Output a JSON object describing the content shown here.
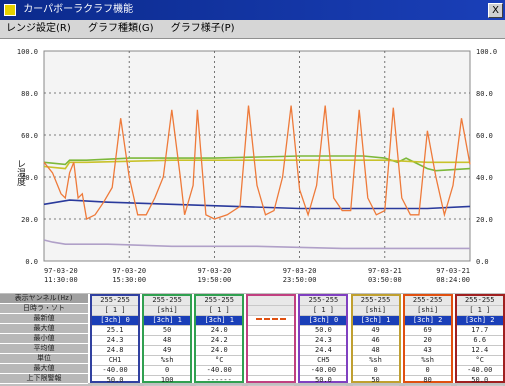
{
  "window": {
    "title": "カーパボーラクラフ機能",
    "close_glyph": "X"
  },
  "menu": {
    "items": [
      "レンジ設定(R)",
      "グラフ種類(G)",
      "グラフ様子(P)"
    ]
  },
  "chart_data": {
    "type": "line",
    "y_left_label": "レ温度",
    "y_left_range": [
      0,
      100
    ],
    "y_right_range": [
      0,
      100
    ],
    "y_left_ticks": [
      "100.0",
      "80.0",
      "60.0",
      "40.0",
      "20.0",
      "0.0"
    ],
    "y_right_ticks": [
      "100.0",
      "80.0",
      "60.0",
      "40.0",
      "20.0",
      "0.0"
    ],
    "x_ticks": [
      {
        "d": "97-03-20",
        "t": "11:30:00"
      },
      {
        "d": "97-03-20",
        "t": "15:30:00"
      },
      {
        "d": "97-03-20",
        "t": "19:50:00"
      },
      {
        "d": "97-03-20",
        "t": "23:50:00"
      },
      {
        "d": "97-03-21",
        "t": "03:50:00"
      },
      {
        "d": "97-03-21",
        "t": "08:24:00"
      }
    ],
    "x_range": [
      0,
      100
    ],
    "grid": true,
    "series": [
      {
        "color": "#7db83a",
        "x": [
          0,
          5,
          6,
          10,
          20,
          40,
          60,
          75,
          80,
          83,
          85,
          90,
          92,
          100
        ],
        "y": [
          47,
          46,
          48,
          48,
          49,
          49,
          50,
          50,
          49,
          47,
          49,
          44,
          43,
          44
        ]
      },
      {
        "color": "#c9c22a",
        "x": [
          0,
          5,
          6,
          10,
          30,
          60,
          80,
          90,
          100
        ],
        "y": [
          45,
          44,
          47,
          47,
          48,
          48,
          48,
          47,
          47
        ]
      },
      {
        "color": "#2a3a9c",
        "x": [
          0,
          3,
          6,
          15,
          30,
          45,
          60,
          75,
          90,
          100
        ],
        "y": [
          27,
          28,
          29,
          28,
          27,
          26,
          25,
          25,
          25,
          26
        ]
      },
      {
        "color": "#b0a0c8",
        "x": [
          0,
          2,
          5,
          15,
          30,
          50,
          70,
          90,
          100
        ],
        "y": [
          10,
          9,
          8,
          8,
          7,
          7,
          6,
          6,
          6
        ]
      },
      {
        "color": "#ee7a3a",
        "x": [
          0,
          2,
          4,
          5,
          6,
          7,
          8,
          9,
          10,
          12,
          14,
          16,
          18,
          20,
          22,
          24,
          26,
          28,
          30,
          32,
          33,
          35,
          36,
          38,
          40,
          43,
          46,
          48,
          50,
          52,
          54,
          56,
          58,
          60,
          62,
          64,
          66,
          68,
          70,
          72,
          74,
          76,
          78,
          80,
          82,
          84,
          86,
          88,
          90,
          92,
          94,
          96,
          98,
          100
        ],
        "y": [
          47,
          42,
          32,
          30,
          42,
          47,
          30,
          32,
          20,
          22,
          28,
          35,
          68,
          40,
          22,
          22,
          30,
          40,
          72,
          40,
          22,
          36,
          72,
          22,
          20,
          22,
          26,
          74,
          36,
          22,
          24,
          40,
          74,
          34,
          22,
          36,
          74,
          30,
          24,
          24,
          72,
          30,
          22,
          24,
          73,
          30,
          22,
          22,
          62,
          40,
          22,
          36,
          68,
          46
        ]
      }
    ]
  },
  "legend": {
    "row_headers": [
      "表示ヤンネル(Hz)",
      "日時ラ・ソト",
      "最新値",
      "最大値",
      "最小値",
      "平均値",
      "単位",
      "最大値",
      "上下限警報"
    ],
    "channels": [
      {
        "border": "#3040a0",
        "cells": [
          "255-255",
          "[ 1 ]",
          "[3ch] 0",
          "25.1",
          "24.3",
          "24.8",
          "CH1",
          "-40.00",
          "50.0"
        ]
      },
      {
        "border": "#30a050",
        "cells": [
          "255-255",
          "[shi]",
          "[3ch] 1",
          "50",
          "48",
          "49",
          "%sh",
          "0",
          "100"
        ]
      },
      {
        "border": "#30a050",
        "cells": [
          "255-255",
          "[ 1 ]",
          "[3ch] 1",
          "24.0",
          "24.2",
          "24.0",
          "°C",
          "-40.00",
          "------"
        ]
      },
      {
        "border": "#c04080",
        "cells": [
          "",
          "",
          "",
          "",
          "",
          "",
          "",
          "",
          ""
        ],
        "dashed": true
      },
      {
        "border": "#8040c0",
        "cells": [
          "255-255",
          "[ 1 ]",
          "[3ch] 0",
          "50.0",
          "24.3",
          "24.4",
          "CH5",
          "-40.00",
          "50.0"
        ]
      },
      {
        "border": "#c0a030",
        "cells": [
          "255-255",
          "[shi]",
          "[3ch] 1",
          "49",
          "46",
          "48",
          "%sh",
          "0",
          "50"
        ]
      },
      {
        "border": "#e05010",
        "cells": [
          "255-255",
          "[shi]",
          "[3ch] 2",
          "69",
          "20",
          "43",
          "%sh",
          "0",
          "80"
        ]
      },
      {
        "border": "#a02020",
        "cells": [
          "255-255",
          "[ 1 ]",
          "[3ch] 2",
          "17.7",
          "6.6",
          "12.4",
          "°C",
          "-40.00",
          "50.0"
        ]
      }
    ]
  }
}
